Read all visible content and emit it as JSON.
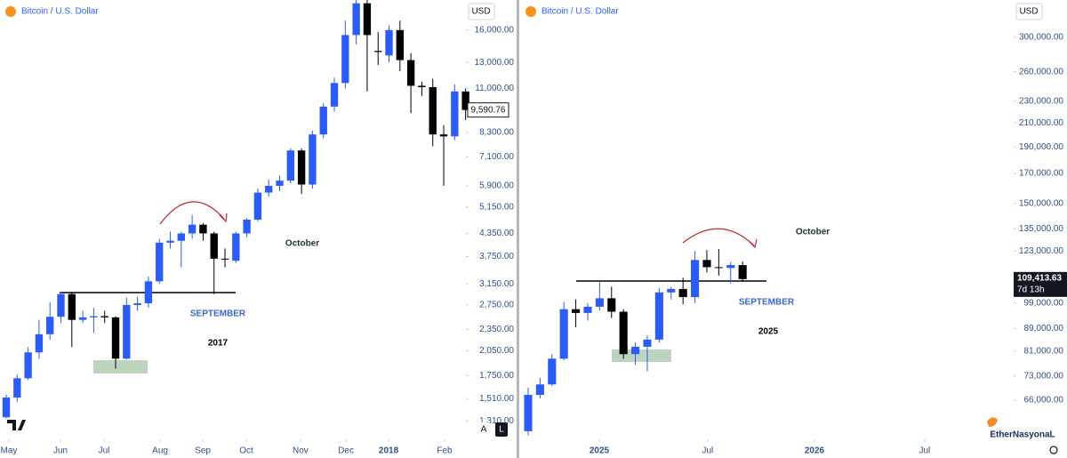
{
  "chart_data": [
    {
      "type": "candlestick",
      "title": "Bitcoin / U.S. Dollar",
      "currency": "USD",
      "log_scale": true,
      "up_color": "#2b5cf6",
      "down_color": "#000000",
      "x": [
        0,
        1,
        2,
        3,
        4,
        5,
        6,
        7,
        8,
        9,
        10,
        11,
        12,
        13,
        14,
        15,
        16,
        17,
        18,
        19,
        20,
        21,
        22,
        23,
        24,
        25,
        26,
        27,
        28,
        29,
        30,
        31,
        32,
        33,
        34,
        35,
        36,
        37,
        38,
        39,
        40,
        41,
        42
      ],
      "open": [
        1340,
        1520,
        1720,
        2030,
        2280,
        2550,
        2950,
        2500,
        2540,
        2560,
        2540,
        1950,
        2750,
        2780,
        3200,
        4100,
        4150,
        4350,
        4600,
        4350,
        3700,
        3650,
        4350,
        4750,
        5650,
        5900,
        6100,
        7400,
        5950,
        8200,
        9800,
        11400,
        15500,
        19000,
        14000,
        13600,
        16000,
        13200,
        11200,
        11100,
        8200,
        8100,
        10800
      ],
      "high": [
        1550,
        1760,
        2100,
        2500,
        2800,
        2990,
        2990,
        2650,
        2700,
        2650,
        2560,
        2880,
        2900,
        3300,
        4200,
        4400,
        4400,
        4900,
        4650,
        4400,
        3950,
        4400,
        4800,
        5800,
        6150,
        6300,
        7500,
        7500,
        8400,
        10000,
        11800,
        17000,
        19700,
        19400,
        15800,
        16500,
        17000,
        13800,
        11500,
        11700,
        8700,
        11300,
        11000
      ],
      "low": [
        1330,
        1480,
        1700,
        1950,
        2200,
        2450,
        2100,
        2450,
        2300,
        2450,
        1830,
        1940,
        2650,
        2700,
        3150,
        3950,
        3500,
        4200,
        4150,
        2950,
        3500,
        3600,
        4250,
        4700,
        5500,
        5700,
        6000,
        5600,
        5800,
        8000,
        9500,
        11000,
        14600,
        10800,
        12800,
        13000,
        12300,
        9400,
        10500,
        7600,
        5900,
        7900,
        9000
      ],
      "close": [
        1520,
        1720,
        2030,
        2280,
        2550,
        2950,
        2500,
        2540,
        2560,
        2540,
        1950,
        2750,
        2780,
        3200,
        4100,
        4150,
        4350,
        4600,
        4350,
        3700,
        3680,
        4350,
        4750,
        5650,
        5900,
        6100,
        7400,
        5950,
        8200,
        9800,
        11400,
        15500,
        19000,
        15500,
        13900,
        16000,
        13200,
        11200,
        11100,
        8200,
        8100,
        10800,
        9590.76
      ],
      "last_label": "9,590.76",
      "xlim": [
        -0.57,
        42.03
      ],
      "xticks": [
        {
          "value": 0.24,
          "label": "May"
        },
        {
          "value": 4.96,
          "label": "Jun"
        },
        {
          "value": 8.94,
          "label": "Jul"
        },
        {
          "value": 14.07,
          "label": "Aug"
        },
        {
          "value": 17.97,
          "label": "Sep"
        },
        {
          "value": 21.95,
          "label": "Oct"
        },
        {
          "value": 26.9,
          "label": "Nov"
        },
        {
          "value": 31.06,
          "label": "Dec"
        },
        {
          "value": 34.96,
          "label": "2018"
        },
        {
          "value": 40.08,
          "label": "Feb"
        }
      ],
      "ylim": [
        1190,
        19400
      ],
      "yticks": [
        {
          "value": 1310,
          "label": "1,310.00"
        },
        {
          "value": 1510,
          "label": "1,510.00"
        },
        {
          "value": 1750,
          "label": "1,750.00"
        },
        {
          "value": 2050,
          "label": "2,050.00"
        },
        {
          "value": 2350,
          "label": "2,350.00"
        },
        {
          "value": 2750,
          "label": "2,750.00"
        },
        {
          "value": 3150,
          "label": "3,150.00"
        },
        {
          "value": 3750,
          "label": "3,750.00"
        },
        {
          "value": 4350,
          "label": "4,350.00"
        },
        {
          "value": 5150,
          "label": "5,150.00"
        },
        {
          "value": 5900,
          "label": "5,900.00"
        },
        {
          "value": 7100,
          "label": "7,100.00"
        },
        {
          "value": 8300,
          "label": "8,300.00"
        },
        {
          "value": 11000,
          "label": "11,000.00"
        },
        {
          "value": 13000,
          "label": "13,000.00"
        },
        {
          "value": 16000,
          "label": "16,000.00"
        }
      ],
      "annotations": [
        "October",
        "SEPTEMBER",
        "2017"
      ],
      "buttons": [
        "A",
        "L"
      ]
    },
    {
      "type": "candlestick",
      "title": "Bitcoin / U.S. Dollar",
      "currency": "USD",
      "log_scale": true,
      "up_color": "#2b5cf6",
      "down_color": "#000000",
      "x": [
        0,
        1,
        2,
        3,
        4,
        5,
        6,
        7,
        8,
        9,
        10,
        11,
        12,
        13,
        14,
        15,
        16,
        17,
        18
      ],
      "open": [
        58000,
        67500,
        70500,
        78500,
        96500,
        95000,
        97500,
        101000,
        95500,
        80000,
        82500,
        85000,
        103500,
        105000,
        101500,
        118500,
        115000,
        114600,
        116000
      ],
      "high": [
        69500,
        72500,
        80000,
        99500,
        100500,
        99000,
        108000,
        106000,
        96500,
        84000,
        86500,
        105500,
        106000,
        110000,
        123000,
        123500,
        124000,
        117500,
        117800
      ],
      "low": [
        57000,
        66500,
        70000,
        78000,
        89500,
        92000,
        96000,
        93000,
        78500,
        76500,
        74500,
        84000,
        100500,
        98500,
        99000,
        112500,
        111000,
        107500,
        108200
      ],
      "close": [
        67500,
        70500,
        78500,
        96500,
        95000,
        97500,
        101000,
        95500,
        80000,
        82500,
        85000,
        103500,
        105000,
        101500,
        118500,
        115000,
        114600,
        116000,
        109413.63
      ],
      "last_label": "109,413.63",
      "countdown": "7d 13h",
      "xlim": [
        -0.67,
        40.75
      ],
      "xticks": [
        {
          "value": 5.97,
          "label": "2025"
        },
        {
          "value": 15.07,
          "label": "Jul"
        },
        {
          "value": 24.03,
          "label": "2026"
        },
        {
          "value": 33.28,
          "label": "Jul"
        }
      ],
      "ylim": [
        56900,
        350700
      ],
      "yticks": [
        {
          "value": 66000,
          "label": "66,000.00"
        },
        {
          "value": 73000,
          "label": "73,000.00"
        },
        {
          "value": 81000,
          "label": "81,000.00"
        },
        {
          "value": 89000,
          "label": "89,000.00"
        },
        {
          "value": 99000,
          "label": "99,000.00"
        },
        {
          "value": 123000,
          "label": "123,000.00"
        },
        {
          "value": 135000,
          "label": "135,000.00"
        },
        {
          "value": 150000,
          "label": "150,000.00"
        },
        {
          "value": 170000,
          "label": "170,000.00"
        },
        {
          "value": 190000,
          "label": "190,000.00"
        },
        {
          "value": 210000,
          "label": "210,000.00"
        },
        {
          "value": 230000,
          "label": "230,000.00"
        },
        {
          "value": 260000,
          "label": "260,000.00"
        },
        {
          "value": 300000,
          "label": "300,000.00"
        }
      ],
      "annotations": [
        "October",
        "SEPTEMBER",
        "2025"
      ]
    }
  ],
  "watermark": "EtherNasyonaL"
}
